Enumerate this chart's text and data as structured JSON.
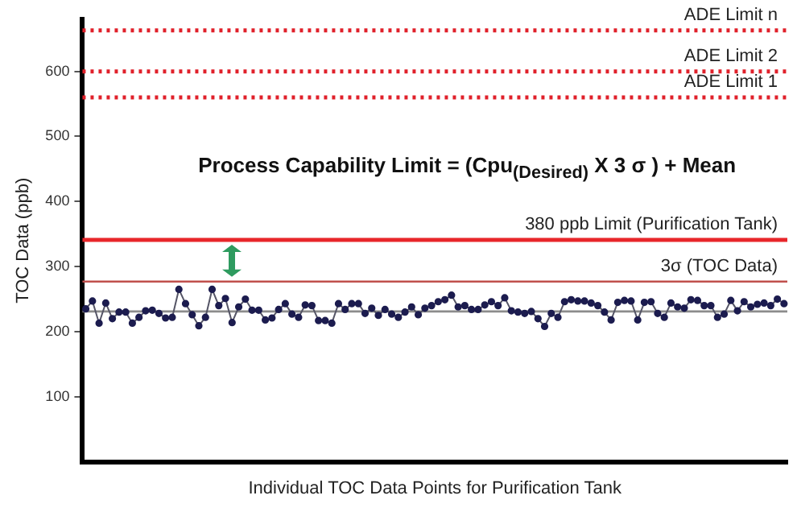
{
  "chart_data": {
    "type": "line",
    "xlabel": "Individual TOC Data Points for Purification Tank",
    "ylabel": "TOC Data (ppb)",
    "annotations": [
      "Process Capability Limit = (Cpu$_{(Desired)}$ X 3 σ ) + Mean"
    ],
    "categories": [
      null,
      null,
      null,
      null,
      null,
      null,
      null,
      null,
      null,
      null,
      null,
      null,
      null,
      null,
      null,
      null,
      null,
      null,
      null,
      null,
      null,
      null,
      null,
      null,
      null,
      null,
      null,
      null,
      null,
      null,
      null,
      null,
      null,
      null,
      null,
      null,
      null,
      null,
      null,
      null,
      null,
      null,
      null,
      null,
      null,
      null,
      null,
      null,
      null,
      null,
      null,
      null,
      null,
      null,
      null,
      null,
      null,
      null,
      null,
      null,
      null,
      null,
      null,
      null,
      null,
      null,
      null,
      null,
      null,
      null,
      null,
      null,
      null,
      null,
      null,
      null,
      null,
      null,
      null,
      null,
      null,
      null,
      null,
      null,
      null,
      null,
      null,
      null,
      null,
      null,
      null,
      null,
      null,
      null,
      null,
      null,
      null,
      null,
      null,
      null,
      null,
      null,
      null,
      null,
      null,
      null
    ],
    "series": [
      {
        "color": "#1c1c4f",
        "values": [
          235,
          247,
          213,
          244,
          220,
          230,
          230,
          213,
          222,
          232,
          233,
          228,
          221,
          222,
          265,
          243,
          226,
          209,
          222,
          265,
          240,
          251,
          214,
          238,
          250,
          233,
          233,
          218,
          221,
          234,
          243,
          227,
          222,
          241,
          240,
          217,
          217,
          213,
          243,
          234,
          243,
          243,
          228,
          236,
          225,
          234,
          227,
          222,
          230,
          238,
          226,
          236,
          240,
          246,
          249,
          256,
          238,
          240,
          234,
          234,
          241,
          246,
          240,
          252,
          232,
          230,
          228,
          231,
          220,
          208,
          228,
          222,
          246,
          249,
          247,
          247,
          244,
          240,
          230,
          218,
          245,
          248,
          247,
          218,
          245,
          246,
          228,
          222,
          244,
          238,
          236,
          249,
          248,
          240,
          240,
          222,
          227,
          248,
          232,
          246,
          238,
          242,
          244,
          240,
          250,
          243
        ]
      }
    ],
    "ylim": [
      0,
      680
    ],
    "yticks": [
      100,
      200,
      300,
      400,
      500,
      600
    ],
    "tick_labels": "y",
    "grid": false,
    "legend": false,
    "marker": "circle",
    "line_style": "solid",
    "ref_lines": [
      {
        "axis": "y",
        "value": 663,
        "label": "ADE Limit n",
        "color": "#e0202a",
        "line_style": "dotted"
      },
      {
        "axis": "y",
        "value": 600,
        "label": "ADE Limit 2",
        "color": "#e0202a",
        "line_style": "dotted"
      },
      {
        "axis": "y",
        "value": 560,
        "label": "ADE Limit 1",
        "color": "#e0202a",
        "line_style": "dotted"
      },
      {
        "axis": "y",
        "value": 341,
        "label": "380 ppb Limit (Purification Tank)",
        "color": "#e8262a",
        "line_style": "solid"
      },
      {
        "axis": "y",
        "value": 277,
        "label": "3σ (TOC Data)",
        "color": "#c0504d",
        "line_style": "solid"
      },
      {
        "axis": "y",
        "value": 231,
        "label": null,
        "color": "#8c8c8c",
        "line_style": "solid"
      }
    ]
  }
}
